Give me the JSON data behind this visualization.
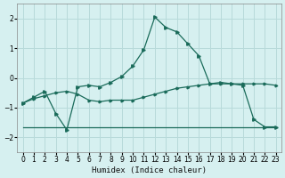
{
  "xlabel": "Humidex (Indice chaleur)",
  "ylabel": "",
  "bg_color": "#d6f0f0",
  "grid_color": "#b8dada",
  "line_color": "#1a6b5a",
  "xlim": [
    -0.5,
    23.5
  ],
  "ylim": [
    -2.5,
    2.5
  ],
  "xticks": [
    0,
    1,
    2,
    3,
    4,
    5,
    6,
    7,
    8,
    9,
    10,
    11,
    12,
    13,
    14,
    15,
    16,
    17,
    18,
    19,
    20,
    21,
    22,
    23
  ],
  "yticks": [
    -2,
    -1,
    0,
    1,
    2
  ],
  "series1_x": [
    0,
    1,
    2,
    3,
    4,
    5,
    6,
    7,
    8,
    9,
    10,
    11,
    12,
    13,
    14,
    15,
    16,
    17,
    18,
    19,
    20,
    21,
    22,
    23
  ],
  "series1_y": [
    -0.85,
    -0.65,
    -0.45,
    -1.2,
    -1.75,
    -0.3,
    -0.25,
    -0.3,
    -0.15,
    0.05,
    0.4,
    0.95,
    2.05,
    1.7,
    1.55,
    1.15,
    0.75,
    -0.2,
    -0.15,
    -0.2,
    -0.25,
    -1.4,
    -1.65,
    -1.65
  ],
  "series2_x": [
    0,
    1,
    2,
    3,
    4,
    5,
    6,
    7,
    8,
    9,
    10,
    11,
    12,
    13,
    14,
    15,
    16,
    17,
    18,
    19,
    20,
    21,
    22,
    23
  ],
  "series2_y": [
    -0.85,
    -0.7,
    -0.6,
    -0.5,
    -0.45,
    -0.55,
    -0.75,
    -0.8,
    -0.75,
    -0.75,
    -0.75,
    -0.65,
    -0.55,
    -0.45,
    -0.35,
    -0.3,
    -0.25,
    -0.2,
    -0.2,
    -0.2,
    -0.2,
    -0.2,
    -0.2,
    -0.25
  ],
  "series3_x": [
    0,
    5,
    10,
    20,
    23
  ],
  "series3_y": [
    -1.65,
    -1.65,
    -1.65,
    -1.65,
    -1.65
  ]
}
